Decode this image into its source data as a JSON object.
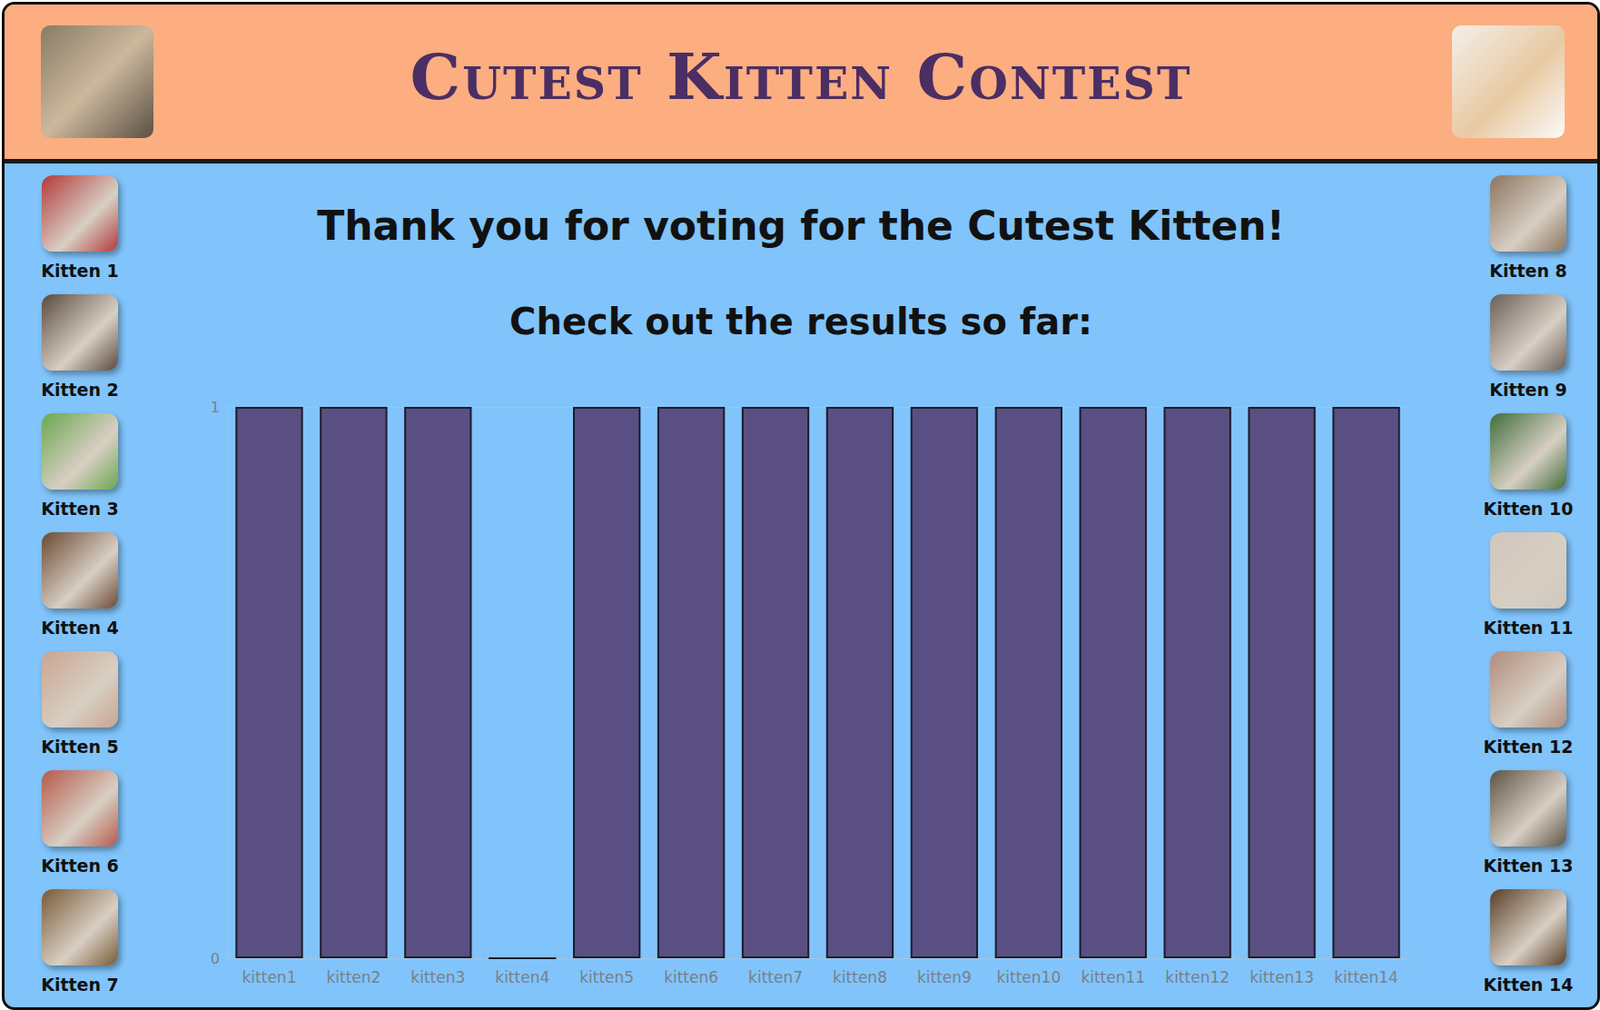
{
  "header": {
    "title": "Cutest Kitten Contest"
  },
  "message": {
    "thanks": "Thank you for voting for the Cutest Kitten!",
    "prompt": "Check out the results so far:"
  },
  "sidebar": {
    "left": [
      "Kitten 1",
      "Kitten 2",
      "Kitten 3",
      "Kitten 4",
      "Kitten 5",
      "Kitten 6",
      "Kitten 7"
    ],
    "right": [
      "Kitten 8",
      "Kitten 9",
      "Kitten 10",
      "Kitten 11",
      "Kitten 12",
      "Kitten 13",
      "Kitten 14"
    ]
  },
  "chart_data": {
    "type": "bar",
    "categories": [
      "kitten1",
      "kitten2",
      "kitten3",
      "kitten4",
      "kitten5",
      "kitten6",
      "kitten7",
      "kitten8",
      "kitten9",
      "kitten10",
      "kitten11",
      "kitten12",
      "kitten13",
      "kitten14"
    ],
    "values": [
      1,
      1,
      1,
      0,
      1,
      1,
      1,
      1,
      1,
      1,
      1,
      1,
      1,
      1
    ],
    "color": "#5a4f82",
    "ylim": [
      0,
      1
    ],
    "yticks": [
      0,
      1
    ],
    "grid": true
  }
}
